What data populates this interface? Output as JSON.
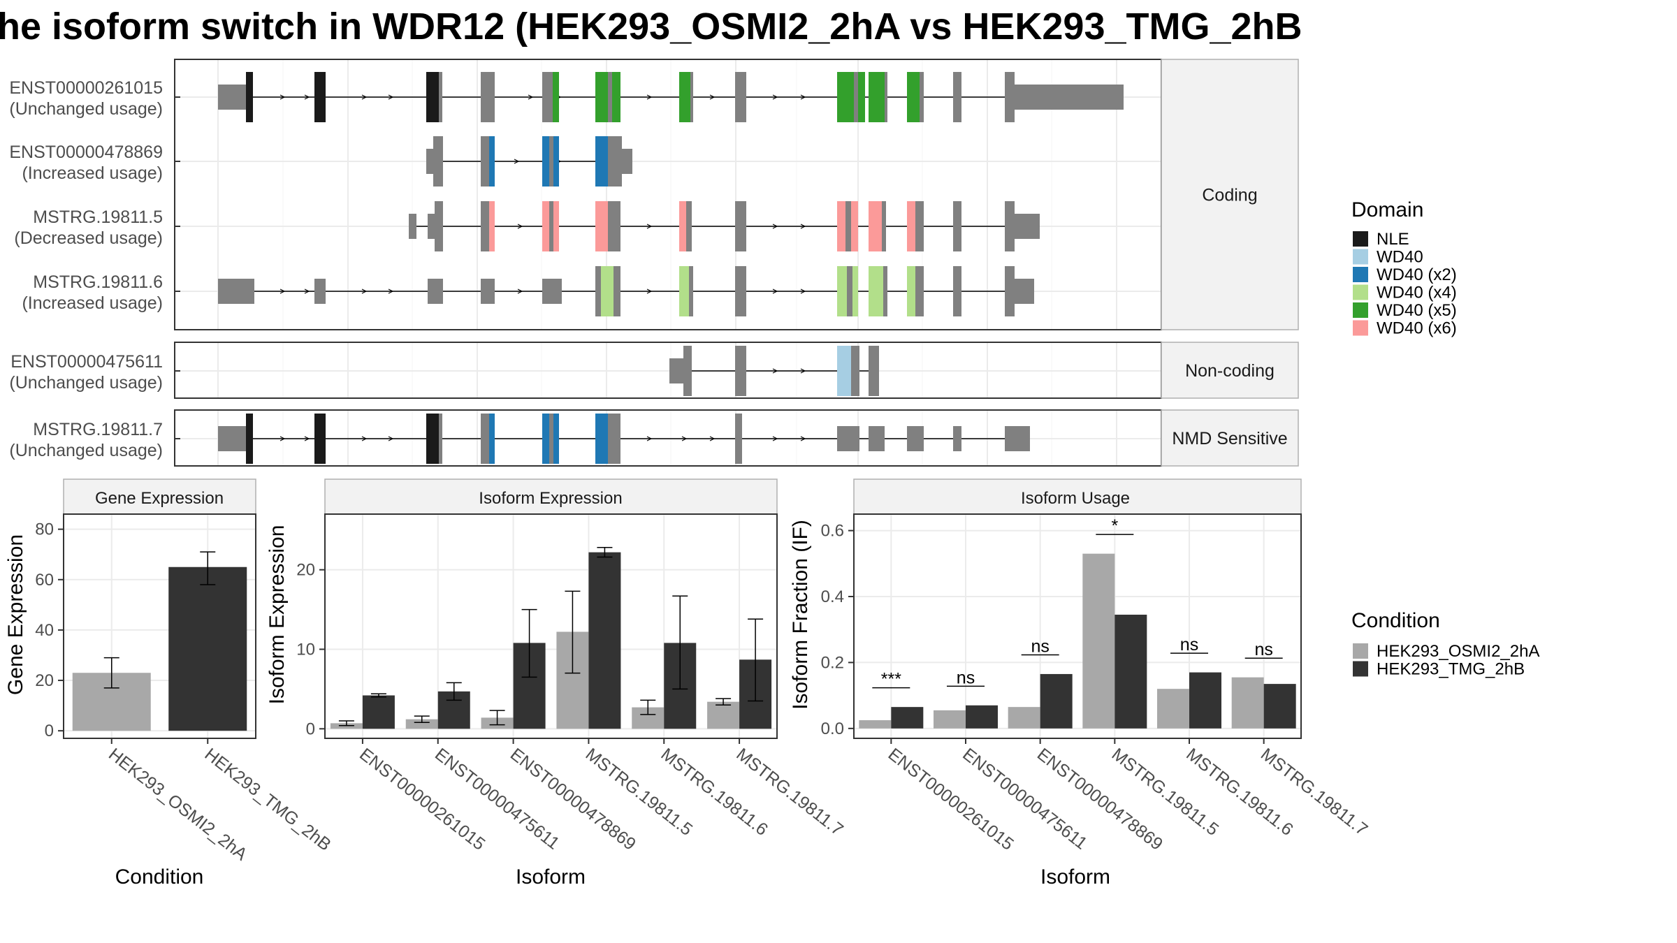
{
  "title": "he isoform switch in WDR12 (HEK293_OSMI2_2hA vs HEK293_TMG_2hB",
  "colors": {
    "exon": "#808080",
    "cond1": "#A8A8A8",
    "cond2": "#333333",
    "grid": "#EBEBEB",
    "strip": "#F2F2F2",
    "panel_border": "#333333"
  },
  "structure": {
    "facets": [
      {
        "label": "Coding",
        "tracks": [
          0,
          1,
          2,
          3
        ]
      },
      {
        "label": "Non-coding",
        "tracks": [
          4
        ]
      },
      {
        "label": "NMD Sensitive",
        "tracks": [
          5
        ]
      }
    ],
    "tracks": [
      {
        "id": "ENST00000261015",
        "usage": "(Unchanged usage)"
      },
      {
        "id": "ENST00000478869",
        "usage": "(Increased usage)"
      },
      {
        "id": "MSTRG.19811.5",
        "usage": "(Decreased usage)"
      },
      {
        "id": "MSTRG.19811.6",
        "usage": "(Increased usage)"
      },
      {
        "id": "ENST00000475611",
        "usage": "(Unchanged usage)"
      },
      {
        "id": "MSTRG.19811.7",
        "usage": "(Unchanged usage)"
      }
    ]
  },
  "domain_legend": {
    "title": "Domain",
    "items": [
      {
        "label": "NLE",
        "color": "#1A1A1A"
      },
      {
        "label": "WD40",
        "color": "#A6CEE3"
      },
      {
        "label": "WD40 (x2)",
        "color": "#1F78B4"
      },
      {
        "label": "WD40 (x4)",
        "color": "#B2DF8A"
      },
      {
        "label": "WD40 (x5)",
        "color": "#33A02C"
      },
      {
        "label": "WD40 (x6)",
        "color": "#FB9A99"
      }
    ]
  },
  "condition_legend": {
    "title": "Condition",
    "items": [
      {
        "label": "HEK293_OSMI2_2hA",
        "color": "#A8A8A8"
      },
      {
        "label": "HEK293_TMG_2hB",
        "color": "#333333"
      }
    ]
  },
  "chart_data": [
    {
      "type": "bar",
      "title": "Gene Expression",
      "xlabel": "Condition",
      "ylabel": "Gene Expression",
      "ylim": [
        -3,
        86
      ],
      "yticks": [
        0,
        20,
        40,
        60,
        80
      ],
      "categories": [
        "HEK293_OSMI2_2hA",
        "HEK293_TMG_2hB"
      ],
      "values": [
        23,
        65
      ],
      "error_low": [
        17,
        58
      ],
      "error_high": [
        29,
        71
      ],
      "colors": [
        "#A8A8A8",
        "#333333"
      ]
    },
    {
      "type": "bar",
      "title": "Isoform Expression",
      "xlabel": "Isoform",
      "ylabel": "Isoform Expression",
      "ylim": [
        -1.2,
        27
      ],
      "yticks": [
        0,
        10,
        20
      ],
      "categories": [
        "ENST00000261015",
        "ENST00000475611",
        "ENST00000478869",
        "MSTRG.19811.5",
        "MSTRG.19811.6",
        "MSTRG.19811.7"
      ],
      "series": [
        {
          "name": "HEK293_OSMI2_2hA",
          "values": [
            0.7,
            1.2,
            1.4,
            12.2,
            2.7,
            3.4
          ],
          "error_low": [
            0.4,
            0.8,
            0.5,
            7.0,
            1.8,
            3.0
          ],
          "error_high": [
            1.0,
            1.6,
            2.3,
            17.3,
            3.6,
            3.8
          ]
        },
        {
          "name": "HEK293_TMG_2hB",
          "values": [
            4.2,
            4.7,
            10.8,
            22.2,
            10.8,
            8.7
          ],
          "error_low": [
            4.0,
            3.6,
            6.5,
            21.6,
            5.0,
            3.5
          ],
          "error_high": [
            4.4,
            5.8,
            15.0,
            22.8,
            16.7,
            13.8
          ]
        }
      ]
    },
    {
      "type": "bar",
      "title": "Isoform Usage",
      "xlabel": "Isoform",
      "ylabel": "Isoform Fraction (IF)",
      "ylim": [
        -0.03,
        0.65
      ],
      "yticks": [
        0.0,
        0.2,
        0.4,
        0.6
      ],
      "yticklabels": [
        "0.0",
        "0.2",
        "0.4",
        "0.6"
      ],
      "categories": [
        "ENST00000261015",
        "ENST00000475611",
        "ENST00000478869",
        "MSTRG.19811.5",
        "MSTRG.19811.6",
        "MSTRG.19811.7"
      ],
      "series": [
        {
          "name": "HEK293_OSMI2_2hA",
          "values": [
            0.025,
            0.055,
            0.065,
            0.53,
            0.12,
            0.155
          ]
        },
        {
          "name": "HEK293_TMG_2hB",
          "values": [
            0.065,
            0.07,
            0.165,
            0.345,
            0.17,
            0.135
          ]
        }
      ],
      "significance": [
        "***",
        "ns",
        "ns",
        "*",
        "ns",
        "ns"
      ]
    }
  ]
}
